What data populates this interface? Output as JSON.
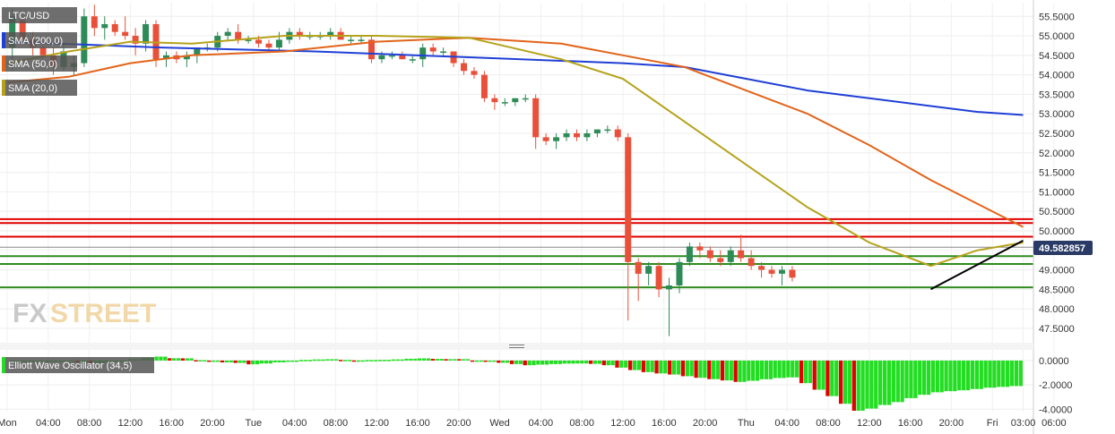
{
  "chart_data": {
    "type": "candlestick",
    "symbol": "LTC/USD",
    "price_label": "49.582857",
    "y_ticks": [
      "55.5000",
      "55.0000",
      "54.5000",
      "54.0000",
      "53.5000",
      "53.0000",
      "52.5000",
      "52.0000",
      "51.5000",
      "51.0000",
      "50.5000",
      "50.0000",
      "49.5000",
      "49.0000",
      "48.5000",
      "48.0000",
      "47.5000"
    ],
    "ylim": [
      47.2,
      55.85
    ],
    "x_ticks": [
      "Mon",
      "04:00",
      "08:00",
      "12:00",
      "16:00",
      "20:00",
      "Tue",
      "04:00",
      "08:00",
      "12:00",
      "16:00",
      "20:00",
      "Wed",
      "04:00",
      "08:00",
      "12:00",
      "16:00",
      "20:00",
      "Thu",
      "04:00",
      "08:00",
      "12:00",
      "16:00",
      "20:00",
      "Fri",
      "03:00",
      "06:00"
    ],
    "xlim_hours": [
      0,
      80
    ],
    "candles": [
      {
        "t": 0.5,
        "o": 54.7,
        "h": 55.7,
        "l": 54.1,
        "c": 55.5
      },
      {
        "t": 1.5,
        "o": 55.4,
        "h": 55.5,
        "l": 54.8,
        "c": 54.9
      },
      {
        "t": 2.5,
        "o": 54.9,
        "h": 55.1,
        "l": 54.5,
        "c": 54.7
      },
      {
        "t": 3.5,
        "o": 54.7,
        "h": 54.9,
        "l": 54.4,
        "c": 54.5
      },
      {
        "t": 4.5,
        "o": 54.5,
        "h": 54.7,
        "l": 54.0,
        "c": 54.2
      },
      {
        "t": 5.5,
        "o": 54.2,
        "h": 54.8,
        "l": 54.1,
        "c": 54.6
      },
      {
        "t": 6.5,
        "o": 54.2,
        "h": 54.5,
        "l": 54.0,
        "c": 54.3
      },
      {
        "t": 7.5,
        "o": 54.3,
        "h": 55.7,
        "l": 54.2,
        "c": 55.5
      },
      {
        "t": 8.5,
        "o": 55.5,
        "h": 55.8,
        "l": 55.0,
        "c": 55.2
      },
      {
        "t": 9.5,
        "o": 55.2,
        "h": 55.5,
        "l": 54.9,
        "c": 55.3
      },
      {
        "t": 10.5,
        "o": 55.3,
        "h": 55.4,
        "l": 55.0,
        "c": 55.1
      },
      {
        "t": 11.5,
        "o": 55.1,
        "h": 55.5,
        "l": 54.9,
        "c": 55.0
      },
      {
        "t": 12.5,
        "o": 55.0,
        "h": 55.2,
        "l": 54.5,
        "c": 54.8
      },
      {
        "t": 13.5,
        "o": 54.8,
        "h": 55.4,
        "l": 54.6,
        "c": 55.3
      },
      {
        "t": 14.5,
        "o": 55.3,
        "h": 55.4,
        "l": 54.2,
        "c": 54.4
      },
      {
        "t": 15.5,
        "o": 54.4,
        "h": 54.6,
        "l": 54.2,
        "c": 54.5
      },
      {
        "t": 16.5,
        "o": 54.5,
        "h": 54.6,
        "l": 54.3,
        "c": 54.4
      },
      {
        "t": 17.5,
        "o": 54.4,
        "h": 54.6,
        "l": 54.2,
        "c": 54.5
      },
      {
        "t": 18.5,
        "o": 54.5,
        "h": 54.7,
        "l": 54.3,
        "c": 54.7
      },
      {
        "t": 19.5,
        "o": 54.7,
        "h": 54.8,
        "l": 54.6,
        "c": 54.7
      },
      {
        "t": 20.5,
        "o": 54.7,
        "h": 55.1,
        "l": 54.6,
        "c": 55.0
      },
      {
        "t": 21.5,
        "o": 55.0,
        "h": 55.2,
        "l": 54.9,
        "c": 55.1
      },
      {
        "t": 22.5,
        "o": 55.1,
        "h": 55.3,
        "l": 54.8,
        "c": 54.9
      },
      {
        "t": 23.5,
        "o": 54.9,
        "h": 55.0,
        "l": 54.8,
        "c": 54.9
      },
      {
        "t": 24.5,
        "o": 54.9,
        "h": 55.0,
        "l": 54.7,
        "c": 54.8
      },
      {
        "t": 25.5,
        "o": 54.8,
        "h": 54.9,
        "l": 54.6,
        "c": 54.7
      },
      {
        "t": 26.5,
        "o": 54.7,
        "h": 55.1,
        "l": 54.6,
        "c": 54.9
      },
      {
        "t": 27.5,
        "o": 54.9,
        "h": 55.2,
        "l": 54.8,
        "c": 55.1
      },
      {
        "t": 28.5,
        "o": 55.1,
        "h": 55.2,
        "l": 54.9,
        "c": 55.0
      },
      {
        "t": 29.5,
        "o": 55.0,
        "h": 55.1,
        "l": 54.9,
        "c": 55.0
      },
      {
        "t": 30.5,
        "o": 55.0,
        "h": 55.1,
        "l": 54.9,
        "c": 55.0
      },
      {
        "t": 31.5,
        "o": 55.0,
        "h": 55.2,
        "l": 54.9,
        "c": 55.1
      },
      {
        "t": 32.5,
        "o": 55.1,
        "h": 55.2,
        "l": 54.9,
        "c": 54.9
      },
      {
        "t": 33.5,
        "o": 54.9,
        "h": 55.0,
        "l": 54.8,
        "c": 54.9
      },
      {
        "t": 34.5,
        "o": 54.9,
        "h": 55.0,
        "l": 54.8,
        "c": 54.9
      },
      {
        "t": 35.5,
        "o": 54.9,
        "h": 55.0,
        "l": 54.3,
        "c": 54.4
      },
      {
        "t": 36.5,
        "o": 54.4,
        "h": 54.6,
        "l": 54.3,
        "c": 54.5
      },
      {
        "t": 37.5,
        "o": 54.5,
        "h": 54.6,
        "l": 54.4,
        "c": 54.5
      },
      {
        "t": 38.5,
        "o": 54.5,
        "h": 54.6,
        "l": 54.4,
        "c": 54.4
      },
      {
        "t": 39.5,
        "o": 54.4,
        "h": 54.5,
        "l": 54.3,
        "c": 54.4
      },
      {
        "t": 40.5,
        "o": 54.4,
        "h": 54.8,
        "l": 54.2,
        "c": 54.7
      },
      {
        "t": 41.5,
        "o": 54.7,
        "h": 54.8,
        "l": 54.5,
        "c": 54.6
      },
      {
        "t": 42.5,
        "o": 54.6,
        "h": 54.7,
        "l": 54.5,
        "c": 54.6
      },
      {
        "t": 43.5,
        "o": 54.6,
        "h": 54.6,
        "l": 54.2,
        "c": 54.3
      },
      {
        "t": 44.5,
        "o": 54.3,
        "h": 54.4,
        "l": 54.0,
        "c": 54.1
      },
      {
        "t": 45.5,
        "o": 54.1,
        "h": 54.2,
        "l": 53.9,
        "c": 54.0
      },
      {
        "t": 46.5,
        "o": 54.0,
        "h": 54.1,
        "l": 53.3,
        "c": 53.4
      },
      {
        "t": 47.5,
        "o": 53.4,
        "h": 53.5,
        "l": 53.1,
        "c": 53.3
      },
      {
        "t": 48.5,
        "o": 53.3,
        "h": 53.4,
        "l": 53.2,
        "c": 53.3
      },
      {
        "t": 49.5,
        "o": 53.3,
        "h": 53.4,
        "l": 53.2,
        "c": 53.4
      },
      {
        "t": 50.5,
        "o": 53.4,
        "h": 53.5,
        "l": 53.3,
        "c": 53.4
      },
      {
        "t": 51.5,
        "o": 53.4,
        "h": 53.5,
        "l": 52.1,
        "c": 52.4
      },
      {
        "t": 52.5,
        "o": 52.4,
        "h": 52.5,
        "l": 52.2,
        "c": 52.3
      },
      {
        "t": 53.5,
        "o": 52.3,
        "h": 52.5,
        "l": 52.1,
        "c": 52.4
      },
      {
        "t": 54.5,
        "o": 52.4,
        "h": 52.6,
        "l": 52.3,
        "c": 52.5
      },
      {
        "t": 55.5,
        "o": 52.5,
        "h": 52.6,
        "l": 52.3,
        "c": 52.4
      },
      {
        "t": 56.5,
        "o": 52.4,
        "h": 52.6,
        "l": 52.3,
        "c": 52.5
      },
      {
        "t": 57.5,
        "o": 52.5,
        "h": 52.6,
        "l": 52.4,
        "c": 52.6
      },
      {
        "t": 58.5,
        "o": 52.6,
        "h": 52.7,
        "l": 52.5,
        "c": 52.6
      },
      {
        "t": 59.5,
        "o": 52.6,
        "h": 52.7,
        "l": 52.3,
        "c": 52.4
      },
      {
        "t": 60.5,
        "o": 52.4,
        "h": 52.5,
        "l": 47.7,
        "c": 49.2
      },
      {
        "t": 61.5,
        "o": 49.2,
        "h": 49.3,
        "l": 48.2,
        "c": 48.9
      },
      {
        "t": 62.5,
        "o": 48.9,
        "h": 49.2,
        "l": 48.6,
        "c": 49.1
      },
      {
        "t": 63.5,
        "o": 49.1,
        "h": 49.2,
        "l": 48.3,
        "c": 48.5
      },
      {
        "t": 64.5,
        "o": 48.5,
        "h": 48.8,
        "l": 47.3,
        "c": 48.6
      },
      {
        "t": 65.5,
        "o": 48.6,
        "h": 49.3,
        "l": 48.4,
        "c": 49.2
      }
    ],
    "candles_day3": [
      {
        "t": 66.5,
        "o": 49.2,
        "h": 49.7,
        "l": 49.1,
        "c": 49.6
      },
      {
        "t": 67.5,
        "o": 49.6,
        "h": 49.7,
        "l": 49.3,
        "c": 49.5
      },
      {
        "t": 68.5,
        "o": 49.5,
        "h": 49.6,
        "l": 49.2,
        "c": 49.3
      },
      {
        "t": 69.5,
        "o": 49.3,
        "h": 49.5,
        "l": 49.1,
        "c": 49.2
      },
      {
        "t": 70.5,
        "o": 49.2,
        "h": 49.6,
        "l": 49.1,
        "c": 49.5
      },
      {
        "t": 71.5,
        "o": 49.5,
        "h": 49.9,
        "l": 49.2,
        "c": 49.3
      },
      {
        "t": 72.5,
        "o": 49.3,
        "h": 49.5,
        "l": 49.0,
        "c": 49.1
      },
      {
        "t": 73.5,
        "o": 49.1,
        "h": 49.2,
        "l": 48.8,
        "c": 49.0
      },
      {
        "t": 74.5,
        "o": 49.0,
        "h": 49.1,
        "l": 48.8,
        "c": 48.9
      },
      {
        "t": 75.5,
        "o": 48.9,
        "h": 49.1,
        "l": 48.6,
        "c": 49.0
      },
      {
        "t": 76.5,
        "o": 49.0,
        "h": 49.1,
        "l": 48.7,
        "c": 48.8
      }
    ],
    "hlines_red": [
      50.3,
      50.2,
      49.85
    ],
    "hlines_green": [
      49.35,
      49.15,
      48.55
    ],
    "hline_grey": 49.58,
    "sma200": [
      [
        0,
        54.85
      ],
      [
        10,
        54.7
      ],
      [
        20,
        54.6
      ],
      [
        30,
        54.45
      ],
      [
        40,
        54.3
      ],
      [
        44,
        54.2
      ],
      [
        48,
        53.9
      ],
      [
        52,
        53.6
      ],
      [
        56,
        53.4
      ],
      [
        60,
        53.2
      ],
      [
        63,
        53.05
      ],
      [
        66,
        52.97
      ]
    ],
    "sma50": [
      [
        0,
        53.8
      ],
      [
        4,
        53.95
      ],
      [
        8,
        54.3
      ],
      [
        12,
        54.5
      ],
      [
        18,
        54.6
      ],
      [
        24,
        54.85
      ],
      [
        30,
        54.95
      ],
      [
        36,
        54.8
      ],
      [
        40,
        54.5
      ],
      [
        44,
        54.2
      ],
      [
        48,
        53.6
      ],
      [
        52,
        53.0
      ],
      [
        56,
        52.2
      ],
      [
        60,
        51.3
      ],
      [
        63,
        50.7
      ],
      [
        66,
        50.1
      ]
    ],
    "sma20": [
      [
        0,
        54.3
      ],
      [
        4,
        54.6
      ],
      [
        8,
        54.85
      ],
      [
        12,
        54.8
      ],
      [
        18,
        55.0
      ],
      [
        24,
        55.0
      ],
      [
        30,
        54.95
      ],
      [
        36,
        54.4
      ],
      [
        40,
        53.9
      ],
      [
        44,
        52.8
      ],
      [
        48,
        51.7
      ],
      [
        52,
        50.6
      ],
      [
        56,
        49.7
      ],
      [
        60,
        49.1
      ],
      [
        63,
        49.5
      ],
      [
        66,
        49.7
      ]
    ],
    "trendline": [
      [
        60,
        48.5
      ],
      [
        66,
        49.75
      ]
    ],
    "oscillator": {
      "name": "Elliott Wave Oscillator (34,5)",
      "y_ticks": [
        "0.0000",
        "-2.0000",
        "-4.0000"
      ],
      "ylim": [
        -4.2,
        0.8
      ]
    },
    "legend": [
      "LTC/USD",
      "SMA (200,0)",
      "SMA (50,0)",
      "SMA (20,0)"
    ],
    "colors": {
      "up": "#2e8b57",
      "down": "#e8503a",
      "sma200": "#1f3fd6",
      "sma50": "#e2641a",
      "sma20": "#b5a21a",
      "hline_red": "#e00000",
      "hline_green": "#2e8b1e",
      "osc_up": "#22dd22",
      "osc_down": "#e00000",
      "price_tag": "#2a3a66"
    },
    "legend_positions_named": "top-left",
    "grid": true
  },
  "logo": {
    "part1": "FX",
    "part2": "STREET"
  }
}
